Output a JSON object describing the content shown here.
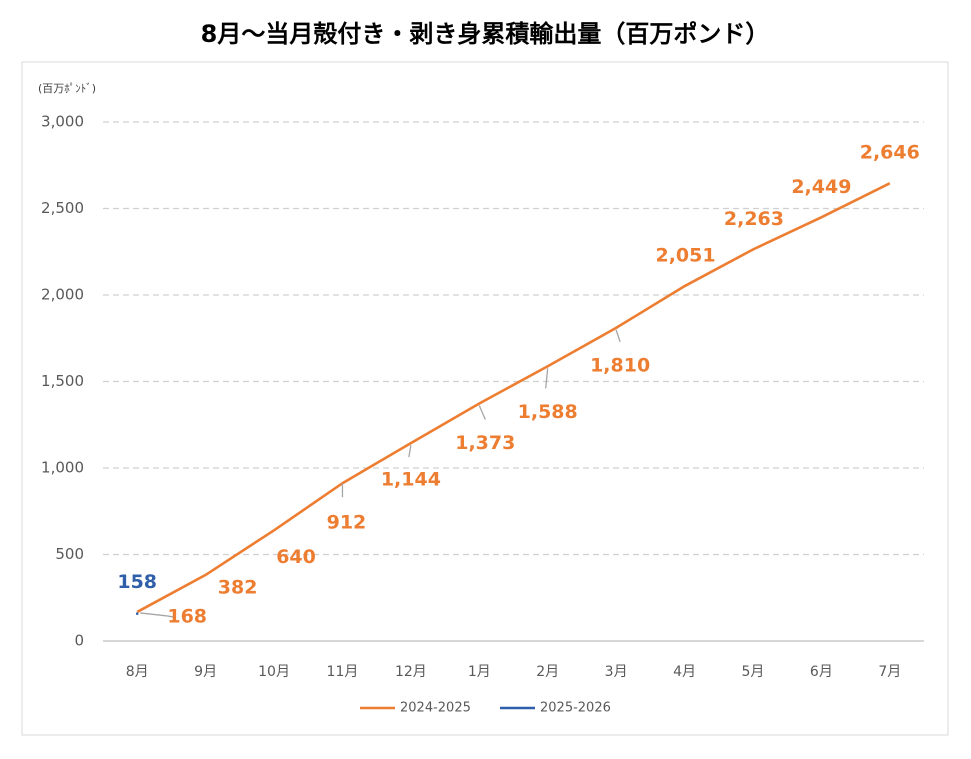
{
  "chart_data": {
    "type": "line",
    "title": "8月～当月殻付き・剥き身累積輸出量（百万ポンド）",
    "y_axis_label": "(百万ﾎﾟﾝﾄﾞ)",
    "categories": [
      "8月",
      "9月",
      "10月",
      "11月",
      "12月",
      "1月",
      "2月",
      "3月",
      "4月",
      "5月",
      "6月",
      "7月"
    ],
    "series": [
      {
        "name": "2024-2025",
        "color": "#ed7d31",
        "values": [
          168,
          382,
          640,
          912,
          1144,
          1373,
          1588,
          1810,
          2051,
          2263,
          2449,
          2646
        ],
        "value_labels": [
          "168",
          "382",
          "640",
          "912",
          "1,144",
          "1,373",
          "1,588",
          "1,810",
          "2,051",
          "2,263",
          "2,449",
          "2,646"
        ]
      },
      {
        "name": "2025-2026",
        "color": "#2e5fa8",
        "values": [
          158,
          null,
          null,
          null,
          null,
          null,
          null,
          null,
          null,
          null,
          null,
          null
        ]
      }
    ],
    "ylim": [
      0,
      3000
    ],
    "yticks": [
      0,
      500,
      {
        "value": 1000,
        "label": "1,000"
      },
      {
        "value": 1500,
        "label": "1,500"
      },
      {
        "value": 2000,
        "label": "2,000"
      },
      {
        "value": 2500,
        "label": "2,500"
      },
      {
        "value": 3000,
        "label": "3,000"
      }
    ],
    "grid": true,
    "legend": "bottom"
  }
}
